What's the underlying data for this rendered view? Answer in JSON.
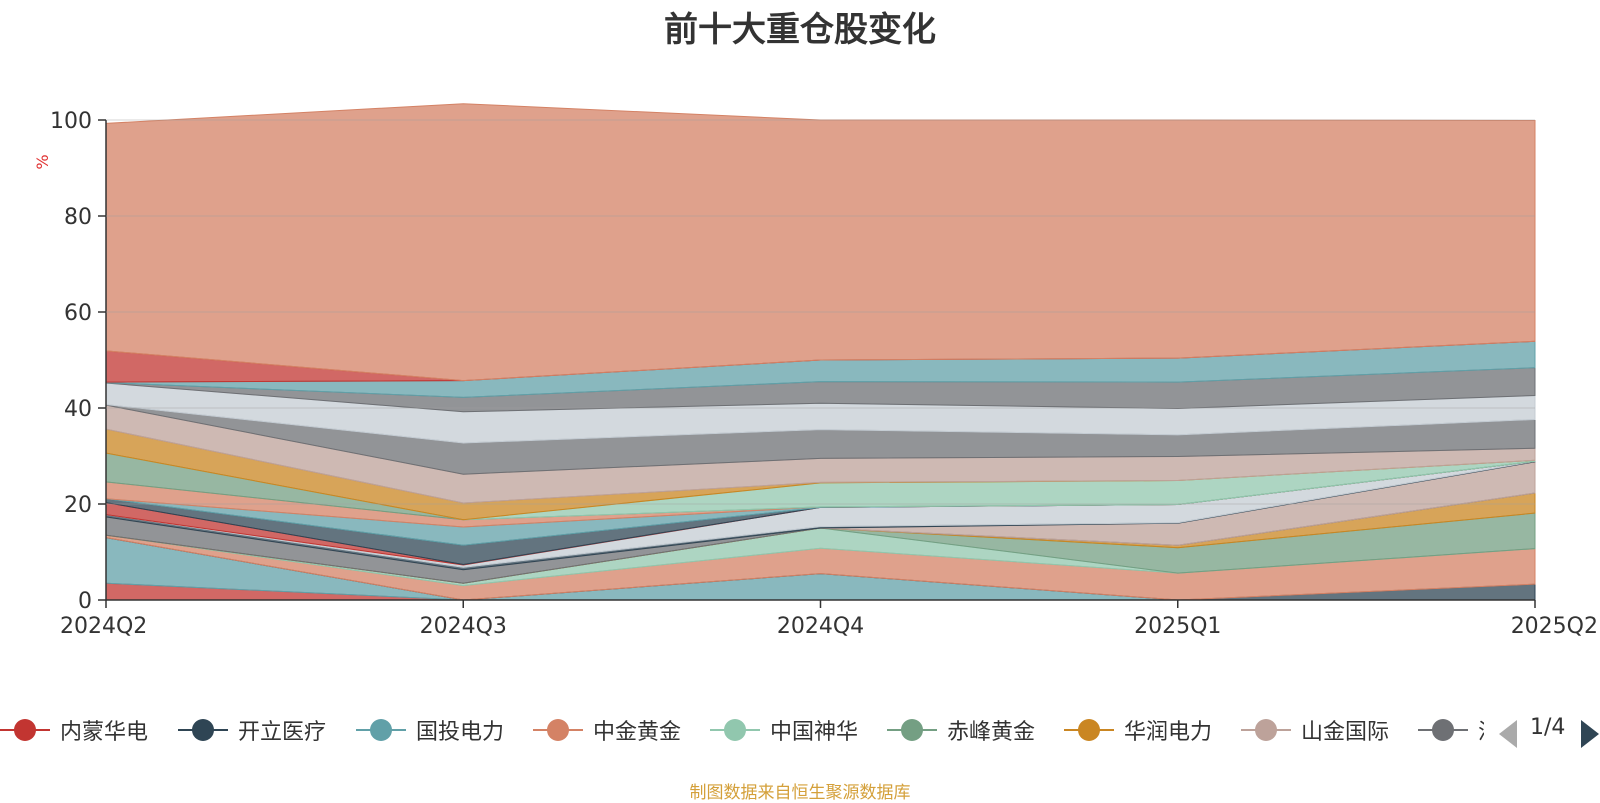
{
  "chart_data": {
    "type": "area",
    "title": "前十大重仓股变化",
    "ylabel": "%",
    "ylim": [
      0,
      100
    ],
    "yticks": [
      0,
      20,
      40,
      60,
      80,
      100
    ],
    "grid": true,
    "categories": [
      "2024Q2",
      "2024Q3",
      "2024Q4",
      "2025Q1",
      "2025Q2"
    ],
    "legend_position": "bottom",
    "legend_page": "1/4",
    "source_note": "制图数据来自恒生聚源数据库",
    "legend_series": [
      {
        "name": "内蒙华电",
        "color": "#c23531"
      },
      {
        "name": "开立医疗",
        "color": "#2f4554"
      },
      {
        "name": "国投电力",
        "color": "#61a0a8"
      },
      {
        "name": "中金黄金",
        "color": "#d48265"
      },
      {
        "name": "中国神华",
        "color": "#91c7ae"
      },
      {
        "name": "赤峰黄金",
        "color": "#749f83"
      },
      {
        "name": "华润电力",
        "color": "#ca8622"
      },
      {
        "name": "山金国际",
        "color": "#bda29a"
      },
      {
        "name": "汇",
        "color": "#6e7074"
      }
    ],
    "bands": [
      {
        "color": "#c23531",
        "values": [
          3.5,
          0,
          null,
          null,
          null
        ]
      },
      {
        "color": "#61a0a8",
        "values": [
          9.5,
          0,
          5.5,
          0,
          null
        ]
      },
      {
        "color": "#2f4554",
        "values": [
          null,
          null,
          null,
          0,
          3.3
        ]
      },
      {
        "color": "#d48265",
        "values": [
          0.5,
          3.0,
          5.3,
          5.6,
          7.4
        ]
      },
      {
        "color": "#91c7ae",
        "values": [
          null,
          0.5,
          4.2,
          null,
          null
        ]
      },
      {
        "color": "#749f83",
        "values": [
          null,
          null,
          null,
          5.3,
          7.4
        ]
      },
      {
        "color": "#ca8622",
        "values": [
          null,
          null,
          null,
          0.5,
          4.2
        ]
      },
      {
        "color": "#6e7074",
        "values": [
          3.8,
          2.8,
          null,
          null,
          null
        ]
      },
      {
        "color": "#bda29a",
        "values": [
          null,
          null,
          null,
          4.6,
          6.5
        ]
      },
      {
        "color": "#2f4554",
        "values": [
          0.5,
          0.5,
          0.3,
          0.1,
          0.1
        ]
      },
      {
        "color": "#c4ccd3",
        "values": [
          null,
          0.5,
          4.0,
          3.8,
          null
        ]
      },
      {
        "color": "#c23531",
        "values": [
          2.5,
          0.1,
          null,
          null,
          null
        ]
      },
      {
        "color": "#2f4554",
        "values": [
          0.8,
          4.0,
          null,
          null,
          null
        ]
      },
      {
        "color": "#61a0a8",
        "values": [
          null,
          3.8,
          0.1,
          null,
          null
        ]
      },
      {
        "color": "#d48265",
        "values": [
          3.5,
          1.5,
          null,
          null,
          null
        ]
      },
      {
        "color": "#749f83",
        "values": [
          6.0,
          null,
          null,
          null,
          null
        ]
      },
      {
        "color": "#91c7ae",
        "values": [
          null,
          null,
          5.0,
          5.0,
          0.2
        ]
      },
      {
        "color": "#ca8622",
        "values": [
          5.0,
          3.5,
          0.1,
          null,
          null
        ]
      },
      {
        "color": "#bda29a",
        "values": [
          5.0,
          6.0,
          5.0,
          5.0,
          2.5
        ]
      },
      {
        "color": "#6e7074",
        "values": [
          0.1,
          6.5,
          6.0,
          4.5,
          6.0
        ]
      },
      {
        "color": "#c4ccd3",
        "values": [
          4.5,
          6.5,
          5.5,
          5.5,
          5.0
        ]
      },
      {
        "color": "#6e7074",
        "values": [
          0.1,
          3.0,
          4.5,
          5.5,
          5.8
        ]
      },
      {
        "color": "#61a0a8",
        "values": [
          0.1,
          3.5,
          4.5,
          5.0,
          5.5
        ]
      },
      {
        "color": "#c23531",
        "values": [
          6.5,
          null,
          null,
          null,
          null
        ]
      },
      {
        "color": "#d48265",
        "values": [
          47.4,
          57.7,
          50.0,
          49.6,
          46.0
        ]
      }
    ]
  }
}
